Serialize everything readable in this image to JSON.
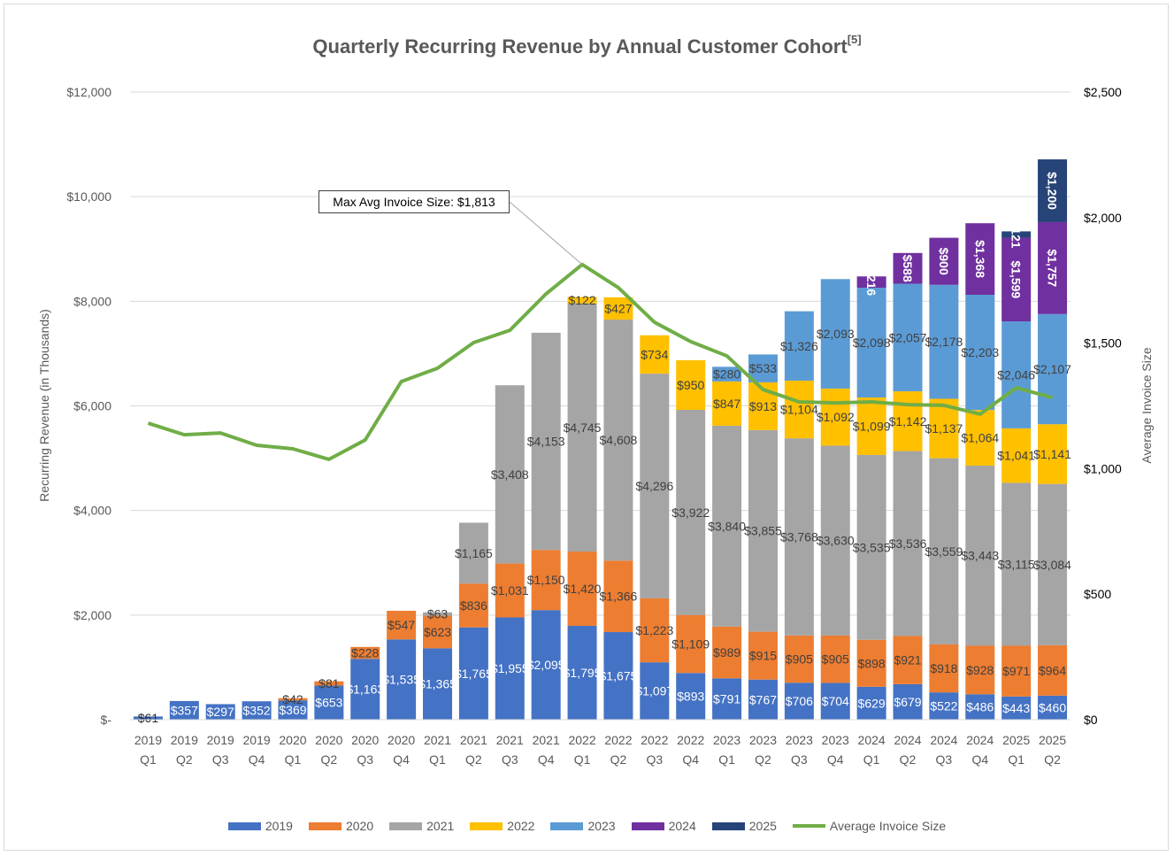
{
  "chart_data": {
    "type": "bar",
    "stacked": true,
    "title": "Quarterly Recurring Revenue by Annual Customer Cohort",
    "title_footnote": "[5]",
    "ylabel": "Recurring Revenue (in Thousands)",
    "y2label": "Average Invoice Size",
    "ylim": [
      0,
      12000
    ],
    "y2lim": [
      0,
      2500
    ],
    "yticks": [
      "$-",
      "$2,000",
      "$4,000",
      "$6,000",
      "$8,000",
      "$10,000",
      "$12,000"
    ],
    "y2ticks": [
      "$0",
      "$500",
      "$1,000",
      "$1,500",
      "$2,000",
      "$2,500"
    ],
    "grid": true,
    "legend_position": "bottom",
    "categories": [
      [
        "2019",
        "Q1"
      ],
      [
        "2019",
        "Q2"
      ],
      [
        "2019",
        "Q3"
      ],
      [
        "2019",
        "Q4"
      ],
      [
        "2020",
        "Q1"
      ],
      [
        "2020",
        "Q2"
      ],
      [
        "2020",
        "Q3"
      ],
      [
        "2020",
        "Q4"
      ],
      [
        "2021",
        "Q1"
      ],
      [
        "2021",
        "Q2"
      ],
      [
        "2021",
        "Q3"
      ],
      [
        "2021",
        "Q4"
      ],
      [
        "2022",
        "Q1"
      ],
      [
        "2022",
        "Q2"
      ],
      [
        "2022",
        "Q3"
      ],
      [
        "2022",
        "Q4"
      ],
      [
        "2023",
        "Q1"
      ],
      [
        "2023",
        "Q2"
      ],
      [
        "2023",
        "Q3"
      ],
      [
        "2023",
        "Q4"
      ],
      [
        "2024",
        "Q1"
      ],
      [
        "2024",
        "Q2"
      ],
      [
        "2024",
        "Q3"
      ],
      [
        "2024",
        "Q4"
      ],
      [
        "2025",
        "Q1"
      ],
      [
        "2025",
        "Q2"
      ]
    ],
    "series": [
      {
        "name": "2019",
        "color": "#4472c4",
        "values": [
          61,
          357,
          297,
          352,
          369,
          653,
          1163,
          1535,
          1365,
          1765,
          1955,
          2095,
          1795,
          1675,
          1097,
          893,
          791,
          767,
          706,
          704,
          629,
          679,
          522,
          486,
          443,
          460
        ]
      },
      {
        "name": "2020",
        "color": "#ed7d31",
        "values": [
          null,
          null,
          null,
          null,
          42,
          81,
          228,
          547,
          623,
          836,
          1031,
          1150,
          1420,
          1366,
          1223,
          1109,
          989,
          915,
          905,
          905,
          898,
          921,
          918,
          928,
          971,
          964
        ]
      },
      {
        "name": "2021",
        "color": "#a5a5a5",
        "values": [
          null,
          null,
          null,
          null,
          null,
          null,
          null,
          null,
          63,
          1165,
          3408,
          4153,
          4745,
          4608,
          4296,
          3922,
          3840,
          3855,
          3768,
          3630,
          3535,
          3536,
          3559,
          3443,
          3115,
          3084
        ]
      },
      {
        "name": "2022",
        "color": "#ffc000",
        "values": [
          null,
          null,
          null,
          null,
          null,
          null,
          null,
          null,
          null,
          null,
          null,
          null,
          122,
          427,
          734,
          950,
          847,
          913,
          1104,
          1092,
          1099,
          1142,
          1137,
          1064,
          1041,
          1141
        ]
      },
      {
        "name": "2023",
        "color": "#5b9bd5",
        "values": [
          null,
          null,
          null,
          null,
          null,
          null,
          null,
          null,
          null,
          null,
          null,
          null,
          null,
          null,
          null,
          null,
          280,
          533,
          1326,
          2093,
          2098,
          2057,
          2178,
          2203,
          2046,
          2107
        ]
      },
      {
        "name": "2024",
        "color": "#7030a0",
        "values": [
          null,
          null,
          null,
          null,
          null,
          null,
          null,
          null,
          null,
          null,
          null,
          null,
          null,
          null,
          null,
          null,
          null,
          null,
          null,
          null,
          216,
          588,
          900,
          1368,
          1599,
          1757
        ]
      },
      {
        "name": "2025",
        "color": "#264478",
        "values": [
          null,
          null,
          null,
          null,
          null,
          null,
          null,
          null,
          null,
          null,
          null,
          null,
          null,
          null,
          null,
          null,
          null,
          null,
          null,
          null,
          null,
          null,
          null,
          null,
          121,
          1200
        ]
      }
    ],
    "line_series": {
      "name": "Average Invoice Size",
      "axis": "right",
      "color": "#70ad47",
      "values": [
        1181,
        1135,
        1142,
        1093,
        1079,
        1037,
        1114,
        1347,
        1400,
        1502,
        1551,
        1696,
        1813,
        1721,
        1583,
        1506,
        1449,
        1315,
        1266,
        1262,
        1266,
        1255,
        1252,
        1217,
        1322,
        1283
      ]
    },
    "annotation": {
      "text": "Max Avg Invoice Size: $1,813",
      "category_index": 12
    }
  }
}
